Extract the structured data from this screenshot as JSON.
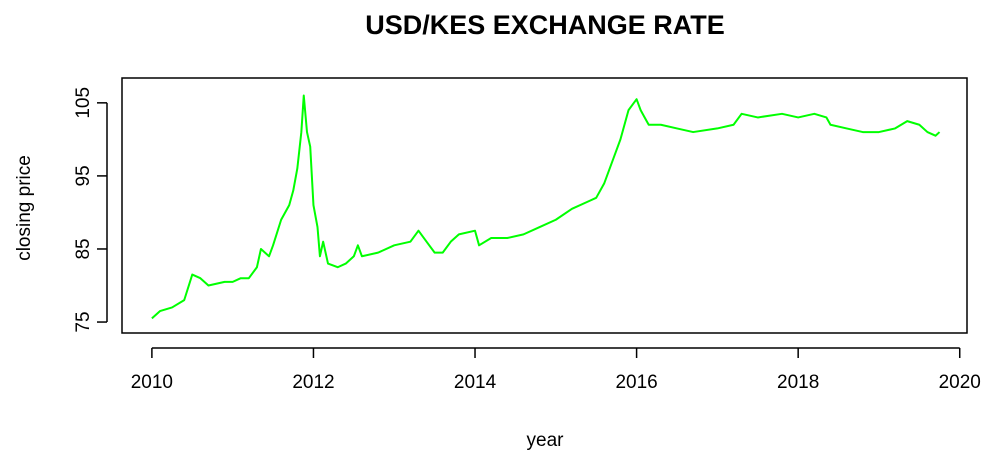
{
  "chart_data": {
    "type": "line",
    "title": "USD/KES EXCHANGE RATE",
    "xlabel": "year",
    "ylabel": "closing price",
    "x": [
      2010.0,
      2010.1,
      2010.25,
      2010.4,
      2010.5,
      2010.6,
      2010.7,
      2010.9,
      2011.0,
      2011.1,
      2011.2,
      2011.3,
      2011.35,
      2011.45,
      2011.5,
      2011.6,
      2011.7,
      2011.75,
      2011.8,
      2011.85,
      2011.88,
      2011.92,
      2011.96,
      2012.0,
      2012.05,
      2012.08,
      2012.12,
      2012.18,
      2012.3,
      2012.4,
      2012.5,
      2012.55,
      2012.6,
      2012.8,
      2013.0,
      2013.2,
      2013.3,
      2013.4,
      2013.5,
      2013.6,
      2013.7,
      2013.8,
      2014.0,
      2014.05,
      2014.2,
      2014.4,
      2014.6,
      2014.8,
      2015.0,
      2015.2,
      2015.4,
      2015.5,
      2015.6,
      2015.7,
      2015.8,
      2015.85,
      2015.9,
      2016.0,
      2016.05,
      2016.1,
      2016.15,
      2016.3,
      2016.5,
      2016.7,
      2017.0,
      2017.2,
      2017.3,
      2017.5,
      2017.8,
      2018.0,
      2018.2,
      2018.35,
      2018.4,
      2018.6,
      2018.8,
      2019.0,
      2019.2,
      2019.35,
      2019.5,
      2019.6,
      2019.7,
      2019.75
    ],
    "series": [
      {
        "name": "closing price",
        "color": "#00ff00",
        "values": [
          75.5,
          76.5,
          77,
          78,
          81.5,
          81,
          80,
          80.5,
          80.5,
          81,
          81,
          82.5,
          85,
          84,
          85.5,
          89,
          91,
          93,
          96,
          101,
          106,
          101,
          99,
          91,
          88,
          84,
          86,
          83,
          82.5,
          83,
          84,
          85.5,
          84,
          84.5,
          85.5,
          86,
          87.5,
          86,
          84.5,
          84.5,
          86,
          87,
          87.5,
          85.5,
          86.5,
          86.5,
          87,
          88,
          89,
          90.5,
          91.5,
          92,
          94,
          97,
          100,
          102,
          104,
          105.5,
          104,
          103,
          102,
          102,
          101.5,
          101,
          101.5,
          102,
          103.5,
          103,
          103.5,
          103,
          103.5,
          103,
          102,
          101.5,
          101,
          101,
          101.5,
          102.5,
          102,
          101,
          100.5,
          101
        ]
      }
    ],
    "xlim": [
      2009.63,
      2020.09
    ],
    "ylim": [
      73.5,
      108.4
    ],
    "xticks": [
      2010,
      2012,
      2014,
      2016,
      2018,
      2020
    ],
    "yticks": [
      75,
      85,
      95,
      105
    ]
  }
}
